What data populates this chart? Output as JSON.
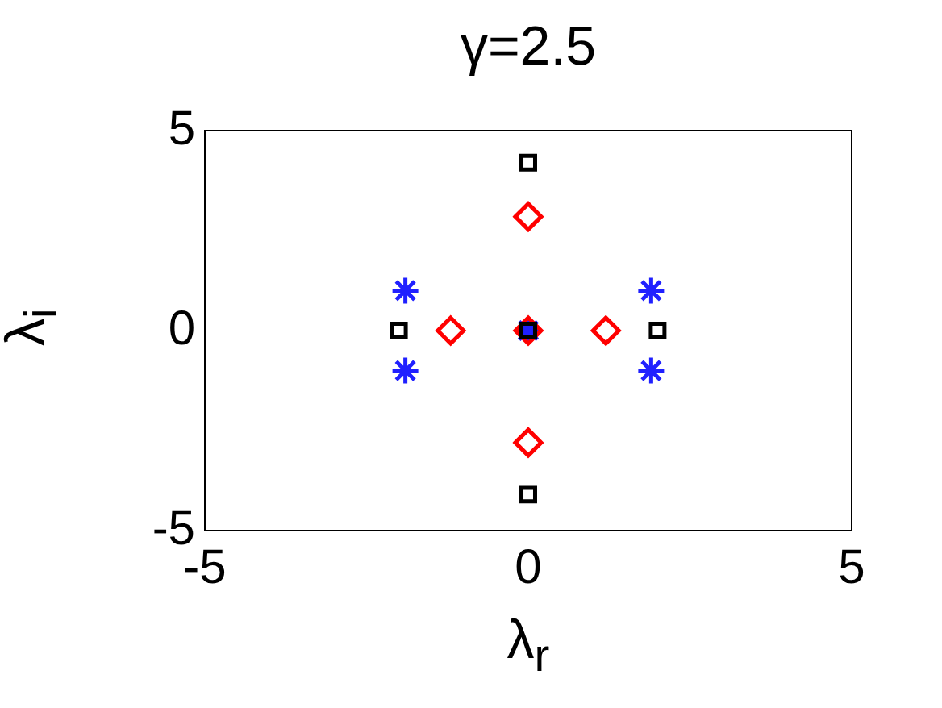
{
  "chart_data": {
    "type": "scatter",
    "title": "γ=2.5",
    "xlabel": "λ$_{r}$",
    "ylabel": "λ$_{i}$",
    "xlim": [
      -5,
      5
    ],
    "ylim": [
      -5,
      5
    ],
    "xticks": [
      -5,
      0,
      5
    ],
    "yticks": [
      -5,
      0,
      5
    ],
    "grid": false,
    "legend": false,
    "series": [
      {
        "color": "#000000",
        "marker": "square",
        "x": [
          0,
          0,
          -2,
          2,
          0
        ],
        "values": [
          4.2,
          -4.1,
          0,
          0,
          0
        ]
      },
      {
        "color": "#ff0000",
        "marker": "diamond",
        "x": [
          0,
          0,
          -1.2,
          1.2,
          0
        ],
        "values": [
          2.85,
          -2.8,
          0,
          0,
          0
        ]
      },
      {
        "color": "#2020ff",
        "marker": "cross",
        "x": [
          -1.9,
          -1.9,
          1.9,
          1.9,
          0
        ],
        "values": [
          1,
          -1,
          1,
          -1,
          0
        ]
      }
    ]
  }
}
